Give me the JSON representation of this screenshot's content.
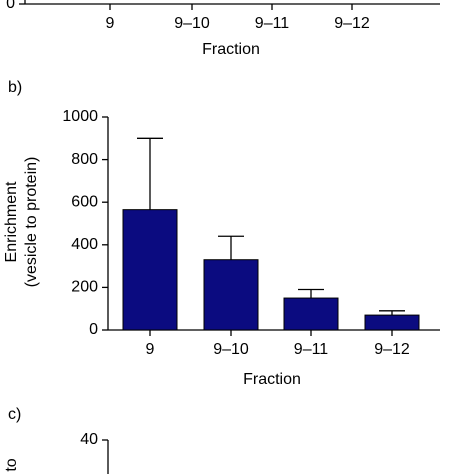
{
  "chart_data": [
    {
      "type": "bar",
      "categories": [
        "9",
        "9–10",
        "9–11",
        "9–12"
      ],
      "x_label": "Fraction",
      "yticks": [
        0
      ]
    },
    {
      "type": "bar",
      "panel_label": "b)",
      "categories": [
        "9",
        "9–10",
        "9–11",
        "9–12"
      ],
      "values": [
        565,
        330,
        150,
        70
      ],
      "errors": [
        335,
        110,
        40,
        20
      ],
      "color": "#0b0b80",
      "ylim": [
        0,
        1000
      ],
      "yticks": [
        0,
        200,
        400,
        600,
        800,
        1000
      ],
      "x_label": "Fraction",
      "y_label": [
        "Enrichment",
        "(vesicle to protein)"
      ]
    },
    {
      "type": "bar",
      "panel_label": "c)",
      "yticks": [
        40
      ],
      "y_label": [
        "to"
      ]
    }
  ]
}
